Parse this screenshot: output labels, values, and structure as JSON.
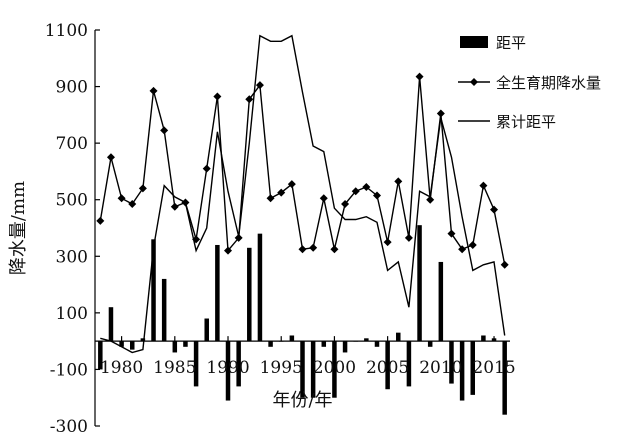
{
  "chart_data": {
    "type": "bar",
    "xlabel": "年份/年",
    "ylabel": "降水量/mm",
    "ylim": [
      -300,
      1100
    ],
    "xlim": [
      1977.5,
      2016.5
    ],
    "yticks": [
      -300,
      -100,
      100,
      300,
      500,
      700,
      900,
      1100
    ],
    "ytick_labels": [
      "-300",
      "-100",
      "100",
      "300",
      "500",
      "700",
      "900",
      "1100"
    ],
    "xticks": [
      1980,
      1985,
      1990,
      1995,
      2000,
      2005,
      2010,
      2015
    ],
    "xtick_labels": [
      "1980",
      "1985",
      "1990",
      "1995",
      "2000",
      "2005",
      "2010",
      "2015"
    ],
    "legend_position": "top-right",
    "grid": false,
    "years": [
      1978,
      1979,
      1980,
      1981,
      1982,
      1983,
      1984,
      1985,
      1986,
      1987,
      1988,
      1989,
      1990,
      1991,
      1992,
      1993,
      1994,
      1995,
      1996,
      1997,
      1998,
      1999,
      2000,
      2001,
      2002,
      2003,
      2004,
      2005,
      2006,
      2007,
      2008,
      2009,
      2010,
      2011,
      2012,
      2013,
      2014,
      2015,
      2016
    ],
    "series": [
      {
        "name": "距平",
        "type": "bar",
        "color": "#000000",
        "values": [
          -100,
          120,
          -20,
          -30,
          10,
          360,
          220,
          -40,
          -20,
          -160,
          80,
          340,
          -210,
          -160,
          330,
          380,
          -20,
          0,
          20,
          -200,
          -200,
          -20,
          -200,
          -40,
          0,
          10,
          -20,
          -170,
          30,
          -160,
          410,
          -20,
          280,
          -150,
          -210,
          -190,
          20,
          10,
          -260
        ]
      },
      {
        "name": "全生育期降水量",
        "type": "line",
        "marker": "diamond",
        "color": "#000000",
        "values": [
          425,
          650,
          505,
          485,
          540,
          885,
          745,
          475,
          490,
          360,
          610,
          865,
          320,
          365,
          855,
          905,
          505,
          525,
          555,
          325,
          330,
          505,
          325,
          485,
          530,
          545,
          515,
          350,
          565,
          365,
          935,
          500,
          805,
          380,
          325,
          340,
          550,
          465,
          270
        ]
      },
      {
        "name": "累计距平",
        "type": "line",
        "color": "#000000",
        "values": [
          10,
          0,
          -20,
          -40,
          -30,
          330,
          550,
          510,
          490,
          320,
          400,
          740,
          530,
          370,
          700,
          1080,
          1060,
          1060,
          1080,
          880,
          690,
          670,
          470,
          430,
          430,
          440,
          420,
          250,
          280,
          120,
          530,
          510,
          790,
          650,
          440,
          250,
          270,
          280,
          20
        ]
      }
    ]
  }
}
